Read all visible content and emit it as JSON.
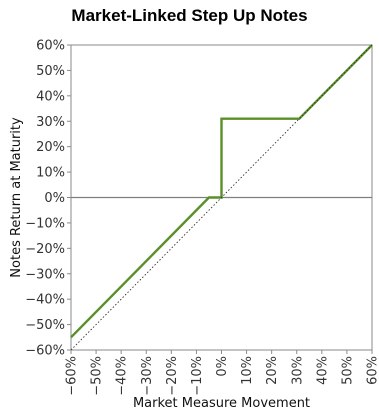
{
  "chart_data": {
    "type": "line",
    "title": "Market-Linked Step Up Notes",
    "xlabel": "Market Measure Movement",
    "ylabel": "Notes Return at Maturity",
    "xlim": [
      -60,
      60
    ],
    "ylim": [
      -60,
      60
    ],
    "x_ticks": [
      "−60%",
      "−50%",
      "−40%",
      "−30%",
      "−20%",
      "−10%",
      "0%",
      "10%",
      "20%",
      "30%",
      "40%",
      "50%",
      "60%"
    ],
    "y_ticks": [
      "−60%",
      "−50%",
      "−40%",
      "−30%",
      "−20%",
      "−10%",
      "0%",
      "10%",
      "20%",
      "30%",
      "40%",
      "50%",
      "60%"
    ],
    "x_tick_values": [
      -60,
      -50,
      -40,
      -30,
      -20,
      -10,
      0,
      10,
      20,
      30,
      40,
      50,
      60
    ],
    "y_tick_values": [
      -60,
      -50,
      -40,
      -30,
      -20,
      -10,
      0,
      10,
      20,
      30,
      40,
      50,
      60
    ],
    "grid": false,
    "series": [
      {
        "x": [
          -60,
          -5,
          0,
          0,
          31,
          60
        ],
        "y": [
          -55,
          0,
          0,
          31,
          31,
          60
        ],
        "color": "#5a8f29",
        "style": "solid"
      },
      {
        "x": [
          -60,
          60
        ],
        "y": [
          -60,
          60
        ],
        "color": "#333333",
        "style": "dotted"
      }
    ],
    "reference_lines": [
      {
        "axis": "y",
        "value": 0,
        "color": "#7f7f7f"
      }
    ]
  }
}
